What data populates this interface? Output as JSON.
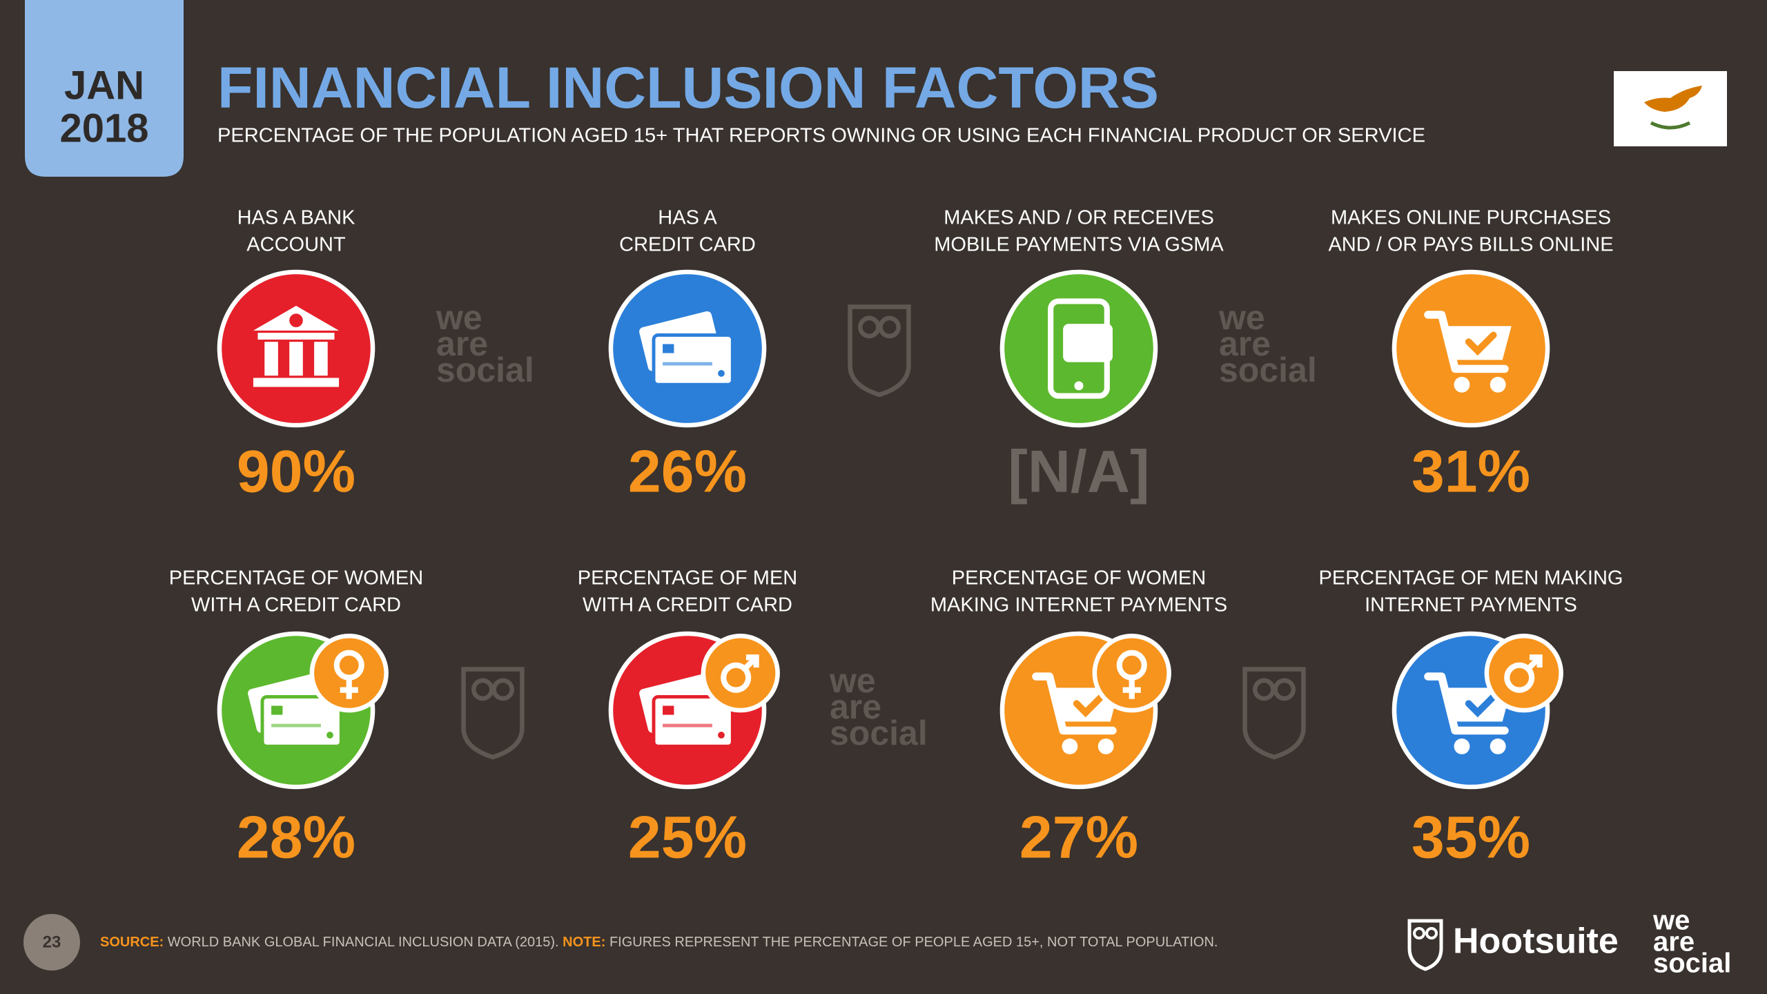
{
  "header": {
    "month": "JAN",
    "year": "2018",
    "title": "FINANCIAL INCLUSION FACTORS",
    "subtitle": "PERCENTAGE OF THE POPULATION AGED 15+ THAT REPORTS OWNING OR USING EACH FINANCIAL PRODUCT OR SERVICE"
  },
  "top_items": [
    {
      "label": [
        "HAS A BANK",
        "ACCOUNT"
      ],
      "value": "90%"
    },
    {
      "label": [
        "HAS A",
        "CREDIT CARD"
      ],
      "value": "26%"
    },
    {
      "label": [
        "MAKES AND / OR RECEIVES",
        "MOBILE PAYMENTS VIA GSMA"
      ],
      "value": "[N/A]"
    },
    {
      "label": [
        "MAKES ONLINE PURCHASES",
        "AND / OR PAYS BILLS ONLINE"
      ],
      "value": "31%"
    }
  ],
  "bottom_items": [
    {
      "label": [
        "PERCENTAGE OF WOMEN",
        "WITH A CREDIT CARD"
      ],
      "value": "28%"
    },
    {
      "label": [
        "PERCENTAGE OF MEN",
        "WITH A CREDIT CARD"
      ],
      "value": "25%"
    },
    {
      "label": [
        "PERCENTAGE OF WOMEN",
        "MAKING INTERNET PAYMENTS"
      ],
      "value": "27%"
    },
    {
      "label": [
        "PERCENTAGE OF MEN MAKING",
        "INTERNET PAYMENTS"
      ],
      "value": "35%"
    }
  ],
  "watermark": [
    "we",
    "are",
    "social"
  ],
  "footer": {
    "page": "23",
    "source_label": "SOURCE:",
    "source_text": "WORLD BANK GLOBAL FINANCIAL INCLUSION DATA (2015).",
    "note_label": "NOTE:",
    "note_text": "FIGURES REPRESENT THE PERCENTAGE OF PEOPLE AGED 15+, NOT TOTAL POPULATION.",
    "brand": "Hootsuite"
  }
}
